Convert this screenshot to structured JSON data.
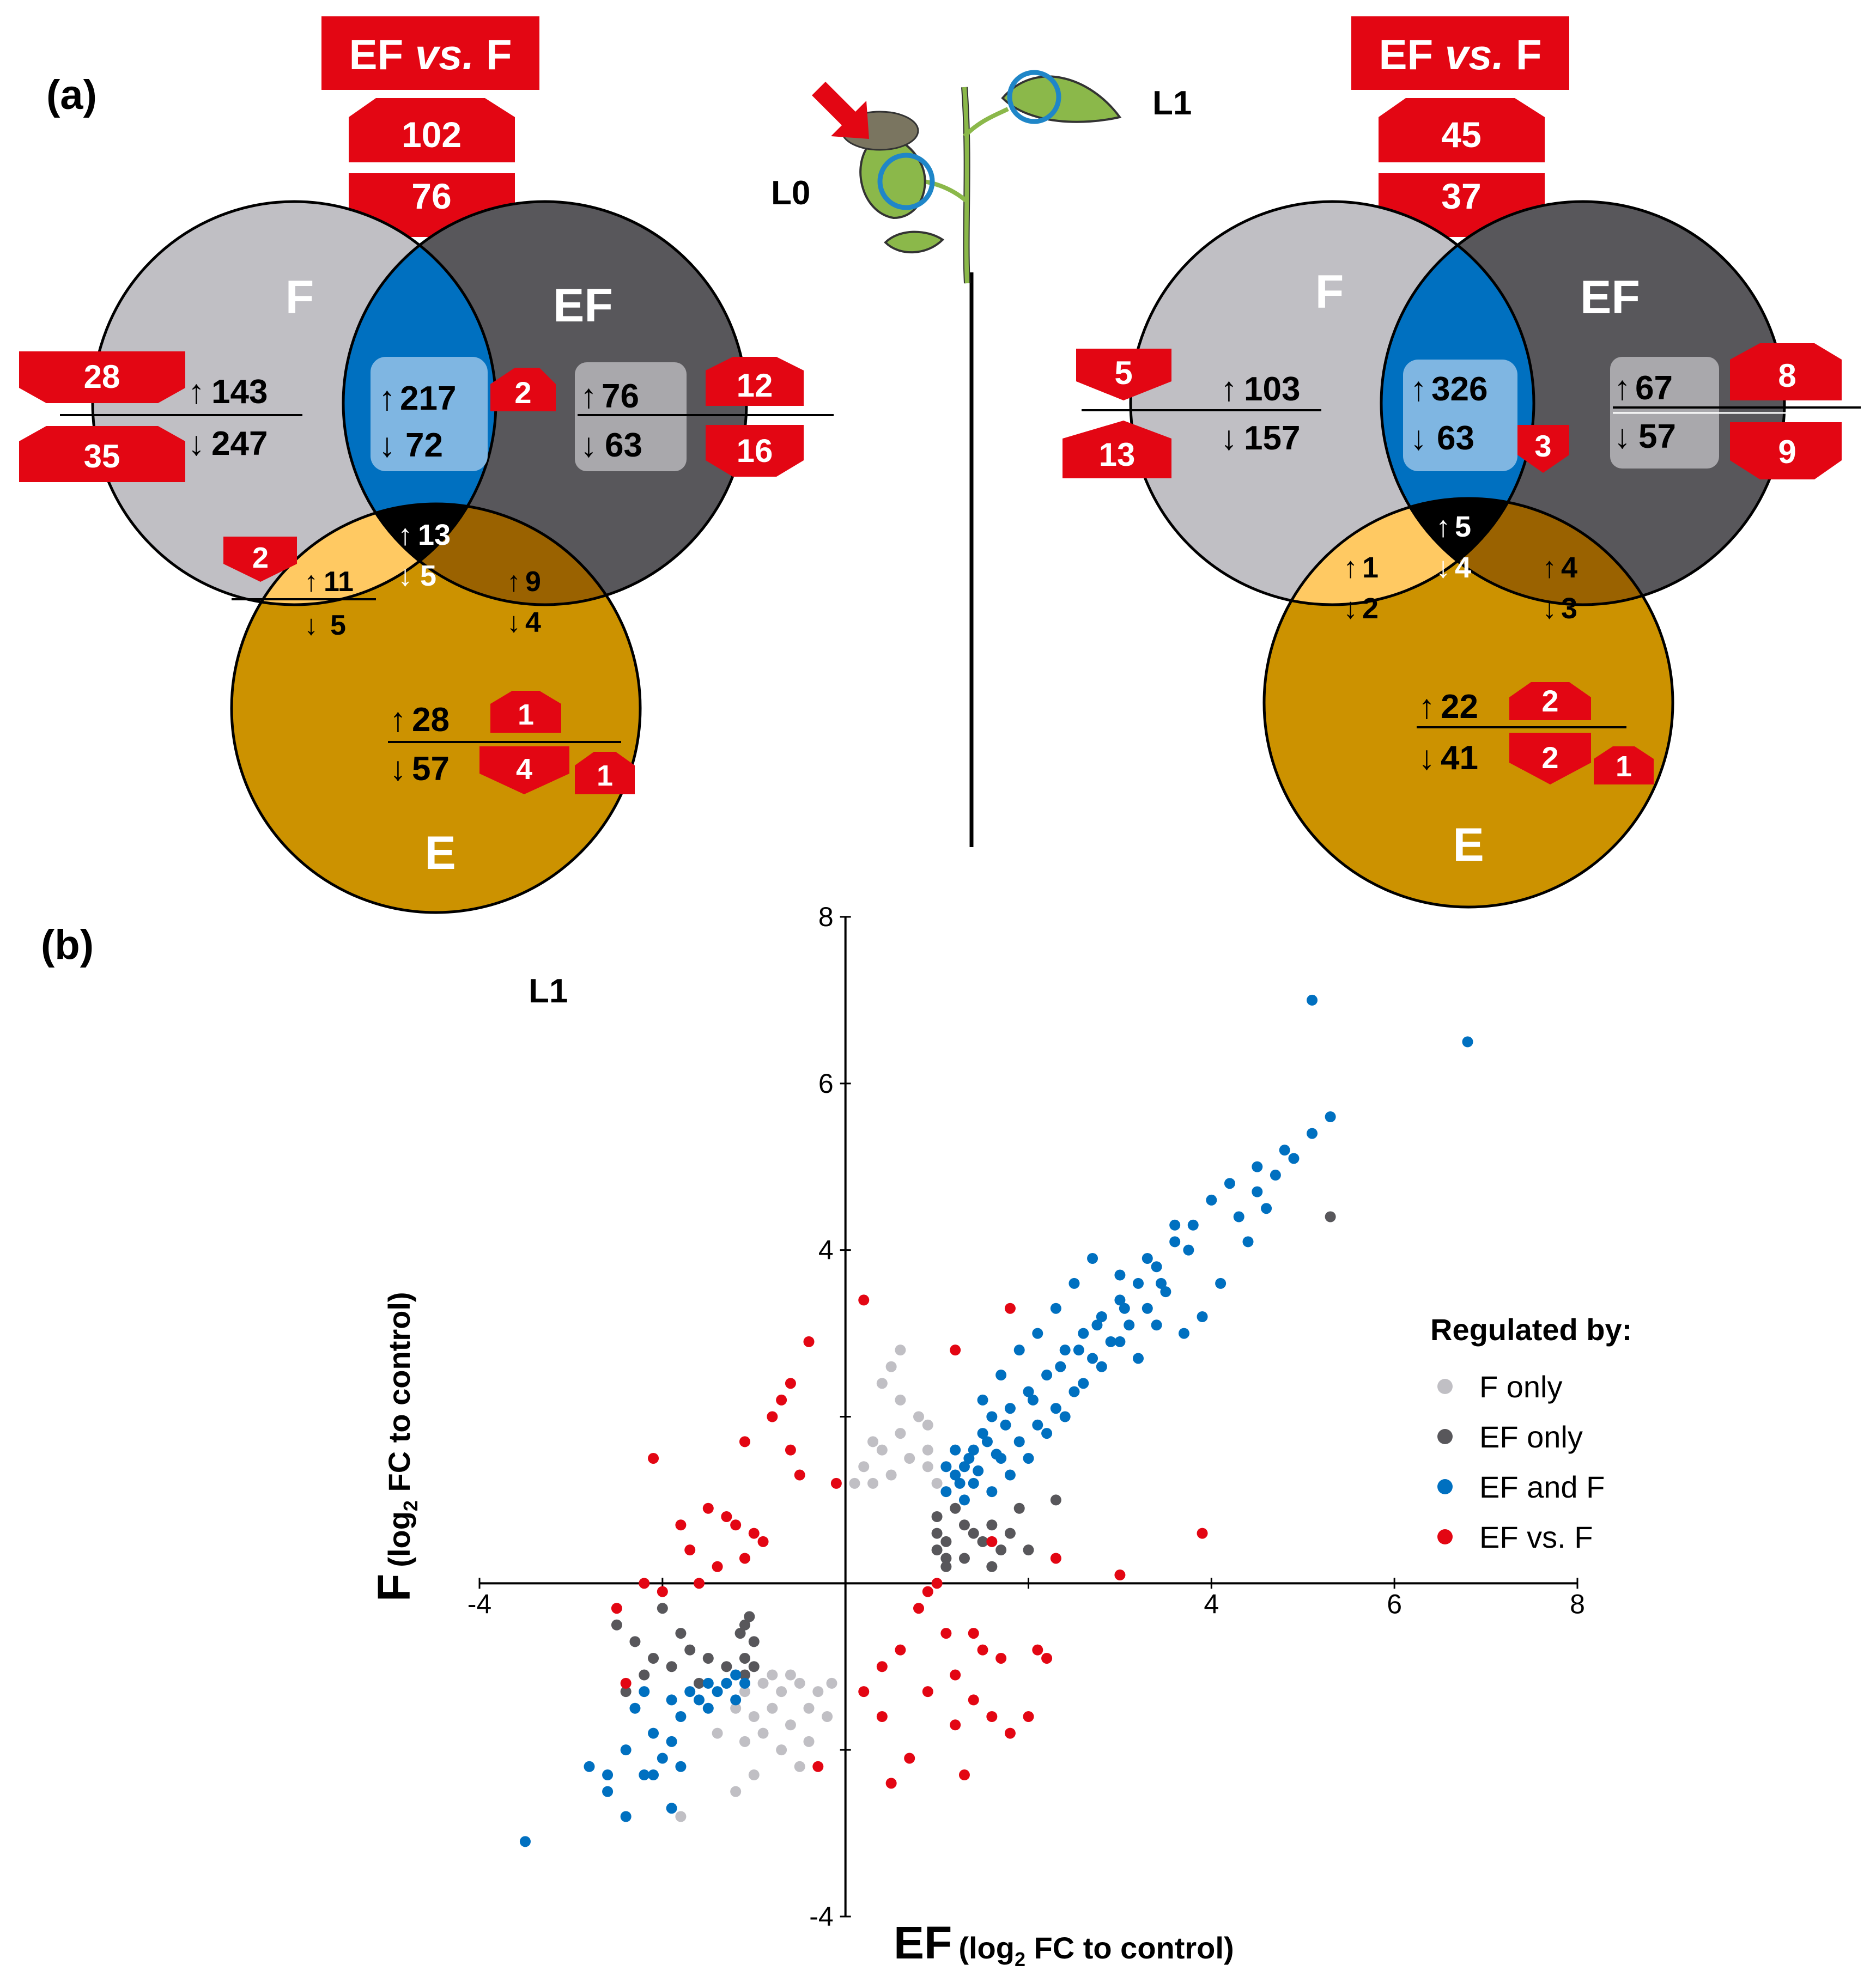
{
  "panel_a_label": "(a)",
  "panel_b_label": "(b)",
  "left": {
    "header": {
      "text": "EF ",
      "vs": "vs.",
      "tail": " F",
      "up": "102",
      "down": "76"
    },
    "circles": {
      "F": "F",
      "EF": "EF",
      "E": "E"
    },
    "f_only": {
      "up": "143",
      "down": "247",
      "badge_up": "28",
      "badge_down": "35"
    },
    "ef_and_f": {
      "up": "217",
      "down": "72",
      "badge": "2"
    },
    "ef_only": {
      "up": "76",
      "down": "63",
      "badge_up": "12",
      "badge_down": "16"
    },
    "all_three": {
      "up": "13",
      "down": "5"
    },
    "f_and_e": {
      "up": "11",
      "down": "5",
      "badge": "2"
    },
    "ef_and_e": {
      "up": "9",
      "down": "4"
    },
    "e_only": {
      "up": "28",
      "down": "57",
      "badge_up": "1",
      "badge_down": "4",
      "badge_extra": "1"
    }
  },
  "right": {
    "header": {
      "text": "EF ",
      "vs": "vs.",
      "tail": " F",
      "up": "45",
      "down": "37"
    },
    "circles": {
      "F": "F",
      "EF": "EF",
      "E": "E"
    },
    "f_only": {
      "up": "103",
      "down": "157",
      "badge_up": "5",
      "badge_down": "13"
    },
    "ef_and_f": {
      "up": "326",
      "down": "63",
      "badge": "3"
    },
    "ef_only": {
      "up": "67",
      "down": "57",
      "badge_up": "8",
      "badge_down": "9"
    },
    "all_three": {
      "up": "5",
      "down": "4"
    },
    "f_and_e": {
      "up": "1",
      "down": "2"
    },
    "ef_and_e": {
      "up": "4",
      "down": "3"
    },
    "e_only": {
      "up": "22",
      "down": "41",
      "badge_up": "2",
      "badge_down": "2",
      "badge_extra": "1"
    }
  },
  "plant": {
    "leaf0": "L0",
    "leaf1": "L1"
  },
  "symbols": {
    "up": "↑",
    "down": "↓"
  },
  "colors": {
    "f_only": "#c0bfc4",
    "ef_only": "#58575b",
    "ef_and_f": "#0070c0",
    "ef_vs_f": "#e30613",
    "e_only": "#cc9200",
    "f_and_e": "#ffc962",
    "ef_and_e": "#9a6200",
    "all_three": "#000000"
  },
  "chart_data": {
    "type": "scatter",
    "panel_title": "L1",
    "xlabel": "EF",
    "xlabel_sub": "(log",
    "xlabel_sub2": "2",
    "xlabel_sub3": " FC to control)",
    "ylabel": "F",
    "ylabel_sub": "(log",
    "ylabel_sub2": "2",
    "ylabel_sub3": " FC to control)",
    "xlim": [
      -4,
      8
    ],
    "ylim": [
      -4,
      8
    ],
    "xticks": [
      -4,
      4,
      6,
      8
    ],
    "yticks": [
      -4,
      4,
      6,
      8
    ],
    "legend_title": "Regulated by:",
    "series": [
      {
        "name": "F only",
        "key": "f_only",
        "points": [
          [
            -1.3,
            -1.2
          ],
          [
            -1.1,
            -1.3
          ],
          [
            -0.9,
            -1.2
          ],
          [
            -0.7,
            -1.3
          ],
          [
            -0.5,
            -1.2
          ],
          [
            -0.3,
            -1.3
          ],
          [
            -0.15,
            -1.2
          ],
          [
            -1.2,
            -1.5
          ],
          [
            -1.0,
            -1.6
          ],
          [
            -0.8,
            -1.5
          ],
          [
            -0.6,
            -1.7
          ],
          [
            -0.4,
            -1.5
          ],
          [
            -1.1,
            -1.9
          ],
          [
            -0.7,
            -2.0
          ],
          [
            -0.4,
            -1.9
          ],
          [
            -1.0,
            -2.3
          ],
          [
            -0.5,
            -2.2
          ],
          [
            -1.2,
            -2.5
          ],
          [
            -1.8,
            -2.8
          ],
          [
            -0.8,
            -1.1
          ],
          [
            -0.6,
            -1.1
          ],
          [
            -1.4,
            -1.8
          ],
          [
            -0.2,
            -1.6
          ],
          [
            -0.9,
            -1.8
          ],
          [
            1.0,
            1.2
          ],
          [
            0.9,
            1.4
          ],
          [
            0.7,
            1.5
          ],
          [
            0.5,
            1.3
          ],
          [
            0.3,
            1.2
          ],
          [
            0.1,
            1.2
          ],
          [
            0.2,
            1.4
          ],
          [
            0.6,
            1.8
          ],
          [
            0.4,
            1.6
          ],
          [
            0.8,
            2.0
          ],
          [
            0.6,
            2.2
          ],
          [
            0.9,
            1.9
          ],
          [
            0.5,
            2.6
          ],
          [
            0.4,
            2.4
          ],
          [
            0.6,
            2.8
          ],
          [
            0.9,
            1.6
          ],
          [
            0.3,
            1.7
          ]
        ]
      },
      {
        "name": "EF only",
        "key": "ef_only",
        "points": [
          [
            -1.1,
            -0.5
          ],
          [
            -1.0,
            -0.7
          ],
          [
            -1.1,
            -0.9
          ],
          [
            -1.0,
            -1.0
          ],
          [
            -1.1,
            -1.1
          ],
          [
            -1.05,
            -0.4
          ],
          [
            -1.15,
            -0.6
          ],
          [
            -1.3,
            -1.0
          ],
          [
            -1.5,
            -0.9
          ],
          [
            -1.7,
            -0.8
          ],
          [
            -1.9,
            -1.0
          ],
          [
            -2.1,
            -0.9
          ],
          [
            -2.3,
            -0.7
          ],
          [
            -2.5,
            -0.5
          ],
          [
            -2.2,
            -1.1
          ],
          [
            -1.6,
            -1.2
          ],
          [
            -2.4,
            -1.3
          ],
          [
            -1.8,
            -0.6
          ],
          [
            -2.0,
            -0.3
          ],
          [
            1.0,
            0.8
          ],
          [
            1.0,
            0.6
          ],
          [
            1.1,
            0.5
          ],
          [
            1.0,
            0.4
          ],
          [
            1.1,
            0.3
          ],
          [
            1.2,
            0.9
          ],
          [
            1.3,
            0.7
          ],
          [
            1.4,
            0.6
          ],
          [
            1.5,
            0.5
          ],
          [
            1.6,
            0.7
          ],
          [
            1.8,
            0.6
          ],
          [
            2.0,
            0.4
          ],
          [
            1.9,
            0.9
          ],
          [
            1.6,
            0.2
          ],
          [
            1.3,
            0.3
          ],
          [
            1.1,
            0.2
          ],
          [
            1.7,
            0.4
          ],
          [
            5.3,
            4.4
          ],
          [
            2.3,
            1.0
          ]
        ]
      },
      {
        "name": "EF and F",
        "key": "ef_and_f",
        "points": [
          [
            -3.5,
            -3.1
          ],
          [
            -2.8,
            -2.2
          ],
          [
            -2.6,
            -2.5
          ],
          [
            -2.6,
            -2.3
          ],
          [
            -2.4,
            -2.0
          ],
          [
            -2.2,
            -2.3
          ],
          [
            -2.0,
            -2.1
          ],
          [
            -2.3,
            -1.5
          ],
          [
            -2.1,
            -1.8
          ],
          [
            -1.9,
            -1.9
          ],
          [
            -1.8,
            -1.6
          ],
          [
            -1.7,
            -1.3
          ],
          [
            -1.6,
            -1.4
          ],
          [
            -1.5,
            -1.2
          ],
          [
            -1.4,
            -1.3
          ],
          [
            -1.3,
            -1.2
          ],
          [
            -1.2,
            -1.1
          ],
          [
            -1.1,
            -1.2
          ],
          [
            -1.2,
            -1.4
          ],
          [
            -1.5,
            -1.5
          ],
          [
            -2.1,
            -2.3
          ],
          [
            -1.8,
            -2.2
          ],
          [
            -1.9,
            -2.7
          ],
          [
            -2.4,
            -2.8
          ],
          [
            -2.2,
            -1.3
          ],
          [
            -1.9,
            -1.4
          ],
          [
            1.1,
            1.1
          ],
          [
            1.2,
            1.3
          ],
          [
            1.3,
            1.4
          ],
          [
            1.4,
            1.6
          ],
          [
            1.5,
            1.8
          ],
          [
            1.6,
            2.0
          ],
          [
            1.8,
            2.1
          ],
          [
            2.0,
            2.3
          ],
          [
            2.2,
            2.5
          ],
          [
            2.4,
            2.8
          ],
          [
            2.6,
            3.0
          ],
          [
            2.8,
            3.2
          ],
          [
            3.0,
            3.4
          ],
          [
            3.2,
            3.6
          ],
          [
            3.4,
            3.8
          ],
          [
            3.6,
            4.1
          ],
          [
            3.8,
            4.3
          ],
          [
            4.0,
            4.6
          ],
          [
            4.2,
            4.8
          ],
          [
            4.5,
            5.0
          ],
          [
            4.8,
            5.2
          ],
          [
            5.1,
            5.4
          ],
          [
            5.3,
            5.6
          ],
          [
            5.1,
            7.0
          ],
          [
            6.8,
            6.5
          ],
          [
            1.2,
            1.6
          ],
          [
            1.4,
            1.2
          ],
          [
            1.7,
            1.5
          ],
          [
            1.9,
            1.7
          ],
          [
            2.1,
            1.9
          ],
          [
            2.3,
            2.1
          ],
          [
            2.5,
            2.3
          ],
          [
            2.7,
            2.7
          ],
          [
            2.9,
            2.9
          ],
          [
            3.1,
            3.1
          ],
          [
            3.3,
            3.3
          ],
          [
            3.5,
            3.5
          ],
          [
            3.7,
            3.0
          ],
          [
            3.9,
            3.2
          ],
          [
            4.1,
            3.6
          ],
          [
            4.4,
            4.1
          ],
          [
            4.6,
            4.5
          ],
          [
            1.3,
            1.0
          ],
          [
            1.6,
            1.1
          ],
          [
            1.8,
            1.3
          ],
          [
            2.0,
            1.5
          ],
          [
            2.2,
            1.8
          ],
          [
            2.4,
            2.0
          ],
          [
            2.6,
            2.4
          ],
          [
            2.8,
            2.6
          ],
          [
            3.0,
            2.9
          ],
          [
            3.2,
            2.7
          ],
          [
            3.4,
            3.1
          ],
          [
            1.5,
            2.2
          ],
          [
            1.7,
            2.5
          ],
          [
            1.9,
            2.8
          ],
          [
            2.1,
            3.0
          ],
          [
            2.3,
            3.3
          ],
          [
            2.5,
            3.6
          ],
          [
            2.7,
            3.9
          ],
          [
            3.0,
            3.7
          ],
          [
            3.3,
            3.9
          ],
          [
            3.6,
            4.3
          ],
          [
            1.1,
            1.4
          ],
          [
            1.25,
            1.2
          ],
          [
            1.35,
            1.5
          ],
          [
            1.45,
            1.35
          ],
          [
            1.55,
            1.7
          ],
          [
            1.65,
            1.55
          ],
          [
            1.75,
            1.9
          ],
          [
            2.05,
            2.2
          ],
          [
            2.35,
            2.6
          ],
          [
            2.55,
            2.8
          ],
          [
            2.75,
            3.1
          ],
          [
            3.05,
            3.3
          ],
          [
            3.45,
            3.6
          ],
          [
            3.75,
            4.0
          ],
          [
            4.3,
            4.4
          ],
          [
            4.7,
            4.9
          ],
          [
            4.9,
            5.1
          ],
          [
            4.5,
            4.7
          ]
        ]
      },
      {
        "name": "EF vs. F",
        "key": "ef_vs_f",
        "points": [
          [
            0.2,
            3.4
          ],
          [
            1.8,
            3.3
          ],
          [
            1.2,
            2.8
          ],
          [
            -0.4,
            2.9
          ],
          [
            -0.6,
            2.4
          ],
          [
            -0.7,
            2.2
          ],
          [
            -0.8,
            2.0
          ],
          [
            -1.1,
            1.7
          ],
          [
            -0.6,
            1.6
          ],
          [
            -0.5,
            1.3
          ],
          [
            -0.1,
            1.2
          ],
          [
            -2.1,
            1.5
          ],
          [
            -1.5,
            0.9
          ],
          [
            -1.3,
            0.8
          ],
          [
            -1.2,
            0.7
          ],
          [
            -1.0,
            0.6
          ],
          [
            -0.9,
            0.5
          ],
          [
            -1.1,
            0.3
          ],
          [
            -1.4,
            0.2
          ],
          [
            -1.6,
            0.0
          ],
          [
            -2.2,
            0.0
          ],
          [
            -2.0,
            -0.1
          ],
          [
            -2.5,
            -0.3
          ],
          [
            -2.4,
            -1.2
          ],
          [
            -1.8,
            0.7
          ],
          [
            -1.7,
            0.4
          ],
          [
            1.0,
            0.0
          ],
          [
            0.9,
            -0.1
          ],
          [
            0.8,
            -0.3
          ],
          [
            0.6,
            -0.8
          ],
          [
            0.4,
            -1.0
          ],
          [
            0.2,
            -1.3
          ],
          [
            0.4,
            -1.6
          ],
          [
            0.9,
            -1.3
          ],
          [
            1.2,
            -1.1
          ],
          [
            1.4,
            -1.4
          ],
          [
            1.6,
            -1.6
          ],
          [
            1.8,
            -1.8
          ],
          [
            2.0,
            -1.6
          ],
          [
            2.2,
            -0.9
          ],
          [
            1.4,
            -0.6
          ],
          [
            1.5,
            -0.8
          ],
          [
            1.7,
            -0.9
          ],
          [
            3.0,
            0.1
          ],
          [
            3.9,
            0.6
          ],
          [
            2.3,
            0.3
          ],
          [
            1.3,
            -2.3
          ],
          [
            0.7,
            -2.1
          ],
          [
            0.5,
            -2.4
          ],
          [
            1.2,
            -1.7
          ],
          [
            2.1,
            -0.8
          ],
          [
            1.1,
            -0.6
          ],
          [
            -0.3,
            -2.2
          ],
          [
            1.6,
            0.5
          ]
        ]
      }
    ]
  }
}
